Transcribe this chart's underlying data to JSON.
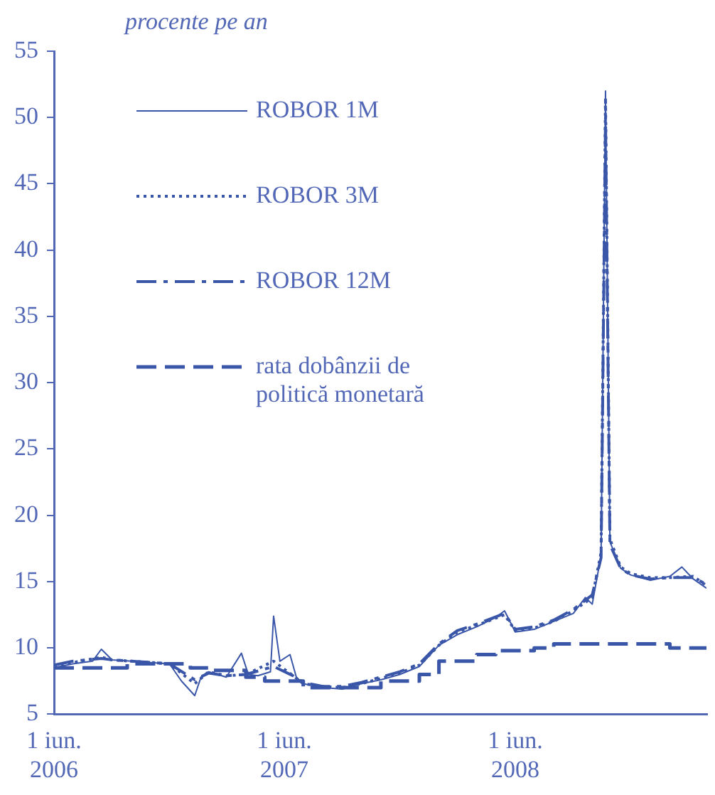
{
  "chart_data": {
    "type": "line",
    "ylabel": "procente pe an",
    "legend": "top left",
    "xlim": [
      "2006-06-01",
      "2009-03-31"
    ],
    "xticks": [
      {
        "value": "2006-06-01",
        "label": "1 iun.\n2006"
      },
      {
        "value": "2007-06-01",
        "label": "1 iun.\n2007"
      },
      {
        "value": "2008-06-01",
        "label": "1 iun.\n2008"
      }
    ],
    "ylim": [
      5,
      55
    ],
    "yticks": [
      5,
      10,
      15,
      20,
      25,
      30,
      35,
      40,
      45,
      50,
      55
    ],
    "series": [
      {
        "name": "ROBOR 1M",
        "color": "#3a56a8",
        "line_style": "solid",
        "x": [
          "2006-06-01",
          "2006-07-01",
          "2006-08-01",
          "2006-08-15",
          "2006-09-01",
          "2006-10-01",
          "2006-11-01",
          "2006-12-01",
          "2006-12-20",
          "2007-01-10",
          "2007-01-20",
          "2007-02-01",
          "2007-03-01",
          "2007-03-25",
          "2007-04-05",
          "2007-04-20",
          "2007-05-10",
          "2007-05-15",
          "2007-05-25",
          "2007-06-10",
          "2007-06-20",
          "2007-07-01",
          "2007-08-01",
          "2007-09-01",
          "2007-10-01",
          "2007-11-01",
          "2007-12-01",
          "2008-01-01",
          "2008-02-01",
          "2008-03-01",
          "2008-04-01",
          "2008-05-01",
          "2008-05-15",
          "2008-06-01",
          "2008-07-01",
          "2008-08-01",
          "2008-09-01",
          "2008-09-20",
          "2008-10-01",
          "2008-10-15",
          "2008-10-22",
          "2008-10-29",
          "2008-11-15",
          "2008-12-01",
          "2009-01-01",
          "2009-02-01",
          "2009-02-20",
          "2009-03-10",
          "2009-03-31"
        ],
        "values": [
          8.5,
          8.8,
          9.0,
          9.9,
          9.1,
          9.0,
          8.9,
          8.8,
          7.5,
          6.4,
          7.8,
          8.2,
          7.8,
          9.6,
          8.0,
          7.9,
          8.2,
          12.4,
          9.0,
          9.5,
          7.8,
          7.3,
          7.0,
          6.9,
          7.3,
          7.6,
          8.0,
          8.6,
          10.2,
          11.0,
          11.6,
          12.3,
          12.8,
          11.2,
          11.4,
          12.0,
          12.6,
          13.8,
          13.3,
          17.0,
          52.0,
          18.0,
          16.0,
          15.5,
          15.1,
          15.4,
          16.1,
          15.2,
          14.5
        ]
      },
      {
        "name": "ROBOR 3M",
        "color": "#3a56a8",
        "line_style": "dotted",
        "x": [
          "2006-06-01",
          "2006-07-01",
          "2006-08-15",
          "2006-09-01",
          "2006-10-01",
          "2006-11-01",
          "2006-12-01",
          "2007-01-10",
          "2007-02-01",
          "2007-03-01",
          "2007-04-01",
          "2007-05-15",
          "2007-06-15",
          "2007-07-01",
          "2007-08-01",
          "2007-09-01",
          "2007-10-01",
          "2007-11-01",
          "2007-12-01",
          "2008-01-01",
          "2008-02-01",
          "2008-03-01",
          "2008-04-01",
          "2008-05-15",
          "2008-06-01",
          "2008-07-01",
          "2008-08-01",
          "2008-09-01",
          "2008-10-01",
          "2008-10-15",
          "2008-10-22",
          "2008-10-29",
          "2008-11-15",
          "2008-12-01",
          "2009-01-01",
          "2009-02-01",
          "2009-03-10",
          "2009-03-31"
        ],
        "values": [
          8.6,
          8.9,
          9.3,
          9.1,
          9.0,
          8.9,
          8.8,
          7.3,
          8.2,
          7.9,
          8.0,
          9.0,
          7.9,
          7.3,
          7.1,
          7.0,
          7.3,
          7.7,
          8.1,
          8.7,
          10.2,
          11.2,
          11.7,
          12.5,
          11.3,
          11.5,
          12.0,
          12.8,
          13.8,
          17.2,
          51.5,
          18.2,
          16.1,
          15.6,
          15.3,
          15.3,
          15.4,
          14.7
        ]
      },
      {
        "name": "ROBOR 12M",
        "color": "#3a56a8",
        "line_style": "dashdot",
        "x": [
          "2006-06-01",
          "2006-07-01",
          "2006-08-15",
          "2006-09-01",
          "2006-10-01",
          "2006-11-01",
          "2006-12-01",
          "2007-01-10",
          "2007-02-01",
          "2007-03-01",
          "2007-04-01",
          "2007-05-15",
          "2007-06-15",
          "2007-07-01",
          "2007-08-01",
          "2007-09-01",
          "2007-10-01",
          "2007-11-01",
          "2007-12-01",
          "2008-01-01",
          "2008-02-01",
          "2008-03-01",
          "2008-04-01",
          "2008-05-15",
          "2008-06-01",
          "2008-07-01",
          "2008-08-01",
          "2008-09-01",
          "2008-10-01",
          "2008-10-15",
          "2008-10-22",
          "2008-10-29",
          "2008-11-15",
          "2008-12-01",
          "2009-01-01",
          "2009-02-01",
          "2009-03-10",
          "2009-03-31"
        ],
        "values": [
          8.7,
          9.0,
          9.2,
          9.1,
          9.0,
          8.9,
          8.8,
          7.6,
          8.1,
          7.9,
          8.0,
          8.6,
          7.9,
          7.4,
          7.1,
          7.1,
          7.4,
          7.8,
          8.2,
          8.8,
          10.3,
          11.3,
          11.8,
          12.6,
          11.4,
          11.6,
          12.1,
          12.9,
          14.0,
          16.8,
          50.0,
          17.8,
          16.0,
          15.5,
          15.2,
          15.3,
          15.3,
          14.8
        ]
      },
      {
        "name": "rata dobânzii de politică monetară",
        "color": "#3a56a8",
        "line_style": "dashed",
        "type": "step",
        "x": [
          "2006-06-01",
          "2006-09-25",
          "2007-01-03",
          "2007-02-01",
          "2007-04-01",
          "2007-05-01",
          "2007-07-01",
          "2007-11-01",
          "2008-01-01",
          "2008-02-01",
          "2008-04-01",
          "2008-05-01",
          "2008-07-01",
          "2008-08-01",
          "2009-02-01",
          "2009-03-31"
        ],
        "values": [
          8.5,
          8.8,
          8.5,
          8.3,
          7.8,
          7.5,
          7.0,
          7.5,
          8.0,
          9.0,
          9.5,
          9.8,
          10.0,
          10.3,
          10.0,
          10.0
        ]
      }
    ]
  }
}
